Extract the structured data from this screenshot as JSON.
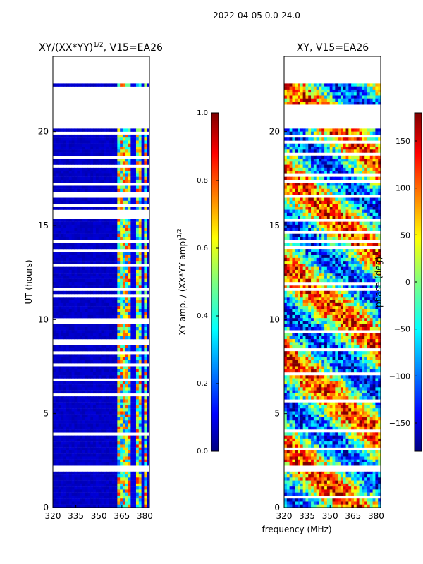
{
  "suptitle": "2022-04-05 0.0-24.0",
  "figure_xlabel": "frequency (MHz)",
  "chart_data": [
    {
      "type": "heatmap",
      "title_main": "XY/(XX*YY)",
      "title_exp": "1/2",
      "title_tail": ", V15=EA26",
      "ylabel": "UT (hours)",
      "xlim": [
        320,
        383
      ],
      "ylim": [
        0,
        24
      ],
      "xticks": [
        320,
        335,
        350,
        365,
        380
      ],
      "yticks": [
        0,
        5,
        10,
        15,
        20
      ],
      "colorbar": {
        "label_main": "XY amp. / (XX*YY amp)",
        "label_exp": "1/2",
        "range": [
          0.0,
          1.0
        ],
        "ticks": [
          "0.0",
          "0.2",
          "0.4",
          "0.6",
          "0.8",
          "1.0"
        ],
        "colormap": "jet"
      },
      "data_gaps_hours": [
        [
          21.3,
          22.4
        ],
        [
          20.1,
          21.5
        ],
        [
          1.9,
          2.2
        ],
        [
          11.5,
          11.7
        ]
      ],
      "active_band_mhz": [
        362,
        381
      ],
      "quiet_value": 0.05,
      "active_value_range": [
        0.2,
        0.85
      ]
    },
    {
      "type": "heatmap",
      "title_main": "XY, V15=EA26",
      "xlim": [
        320,
        383
      ],
      "ylim": [
        0,
        24
      ],
      "xticks": [
        320,
        335,
        350,
        365,
        380
      ],
      "yticks": [
        0,
        5,
        10,
        15,
        20
      ],
      "colorbar": {
        "label_main": "phase (deg)",
        "range": [
          -180,
          180
        ],
        "ticks": [
          "−150",
          "−100",
          "−50",
          "0",
          "50",
          "100",
          "150"
        ],
        "tick_values": [
          -150,
          -100,
          -50,
          0,
          50,
          100,
          150
        ],
        "colormap": "jet"
      },
      "data_gaps_hours": [
        [
          20.1,
          21.5
        ],
        [
          1.9,
          2.2
        ],
        [
          11.5,
          11.7
        ]
      ]
    }
  ],
  "colors": {
    "jet": [
      "#00007f",
      "#0000ff",
      "#007fff",
      "#00ffff",
      "#7fff7f",
      "#ffff00",
      "#ff7f00",
      "#ff0000",
      "#7f0000"
    ]
  }
}
